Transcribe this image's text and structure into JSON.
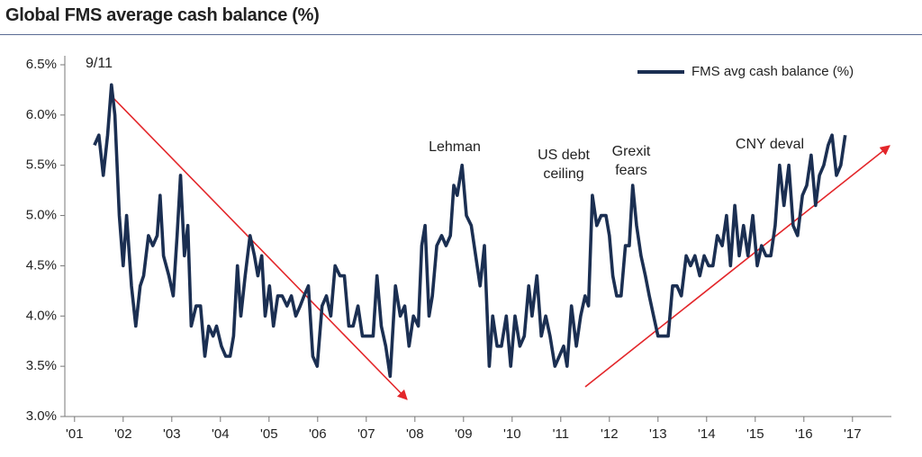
{
  "chart_data": {
    "type": "line",
    "title": "Global FMS average cash balance (%)",
    "annotations": [
      "9/11",
      "Lehman",
      "US debt ceiling",
      "Grexit fears",
      "CNY deval"
    ],
    "legend": "upper right",
    "xlim": [
      2000.8,
      2017.8
    ],
    "xticks": [
      {
        "value": 2001,
        "label": "'01"
      },
      {
        "value": 2002,
        "label": "'02"
      },
      {
        "value": 2003,
        "label": "'03"
      },
      {
        "value": 2004,
        "label": "'04"
      },
      {
        "value": 2005,
        "label": "'05"
      },
      {
        "value": 2006,
        "label": "'06"
      },
      {
        "value": 2007,
        "label": "'07"
      },
      {
        "value": 2008,
        "label": "'08"
      },
      {
        "value": 2009,
        "label": "'09"
      },
      {
        "value": 2010,
        "label": "'10"
      },
      {
        "value": 2011,
        "label": "'11"
      },
      {
        "value": 2012,
        "label": "'12"
      },
      {
        "value": 2013,
        "label": "'13"
      },
      {
        "value": 2014,
        "label": "'14"
      },
      {
        "value": 2015,
        "label": "'15"
      },
      {
        "value": 2016,
        "label": "'16"
      },
      {
        "value": 2017,
        "label": "'17"
      }
    ],
    "ylim": [
      3.0,
      6.5
    ],
    "yticks": [
      {
        "value": 3.0,
        "label": "3.0%"
      },
      {
        "value": 3.5,
        "label": "3.5%"
      },
      {
        "value": 4.0,
        "label": "4.0%"
      },
      {
        "value": 4.5,
        "label": "4.5%"
      },
      {
        "value": 5.0,
        "label": "5.0%"
      },
      {
        "value": 5.5,
        "label": "5.5%"
      },
      {
        "value": 6.0,
        "label": "6.0%"
      },
      {
        "value": 6.5,
        "label": "6.5%"
      }
    ],
    "x": [
      2001.41,
      2001.5,
      2001.59,
      2001.68,
      2001.76,
      2001.83,
      2001.92,
      2002.0,
      2002.07,
      2002.17,
      2002.26,
      2002.35,
      2002.42,
      2002.52,
      2002.61,
      2002.7,
      2002.76,
      2002.83,
      2002.94,
      2003.03,
      2003.11,
      2003.18,
      2003.26,
      2003.33,
      2003.4,
      2003.5,
      2003.59,
      2003.68,
      2003.76,
      2003.85,
      2003.92,
      2004.02,
      2004.11,
      2004.2,
      2004.27,
      2004.35,
      2004.42,
      2004.51,
      2004.61,
      2004.7,
      2004.77,
      2004.85,
      2004.92,
      2005.01,
      2005.09,
      2005.18,
      2005.27,
      2005.37,
      2005.46,
      2005.55,
      2005.64,
      2005.72,
      2005.81,
      2005.9,
      2005.99,
      2006.09,
      2006.18,
      2006.27,
      2006.36,
      2006.46,
      2006.55,
      2006.64,
      2006.73,
      2006.83,
      2006.92,
      2007.05,
      2007.14,
      2007.22,
      2007.31,
      2007.4,
      2007.49,
      2007.6,
      2007.7,
      2007.79,
      2007.88,
      2007.97,
      2008.07,
      2008.14,
      2008.21,
      2008.29,
      2008.36,
      2008.45,
      2008.55,
      2008.64,
      2008.73,
      2008.8,
      2008.87,
      2008.97,
      2009.06,
      2009.16,
      2009.25,
      2009.34,
      2009.43,
      2009.53,
      2009.6,
      2009.69,
      2009.78,
      2009.88,
      2009.97,
      2010.06,
      2010.16,
      2010.25,
      2010.34,
      2010.41,
      2010.51,
      2010.6,
      2010.69,
      2010.78,
      2010.88,
      2010.97,
      2011.06,
      2011.13,
      2011.22,
      2011.32,
      2011.41,
      2011.5,
      2011.57,
      2011.65,
      2011.74,
      2011.83,
      2011.93,
      2012.0,
      2012.07,
      2012.15,
      2012.24,
      2012.33,
      2012.41,
      2012.48,
      2012.56,
      2012.65,
      2012.74,
      2012.82,
      2012.91,
      2013.0,
      2013.11,
      2013.21,
      2013.3,
      2013.39,
      2013.48,
      2013.58,
      2013.67,
      2013.76,
      2013.86,
      2013.95,
      2014.04,
      2014.13,
      2014.22,
      2014.32,
      2014.41,
      2014.49,
      2014.58,
      2014.67,
      2014.76,
      2014.85,
      2014.95,
      2015.04,
      2015.13,
      2015.22,
      2015.32,
      2015.41,
      2015.5,
      2015.59,
      2015.69,
      2015.78,
      2015.87,
      2015.97,
      2016.06,
      2016.15,
      2016.24,
      2016.32,
      2016.41,
      2016.5,
      2016.58,
      2016.67,
      2016.76,
      2016.85
    ],
    "series": [
      {
        "name": "FMS avg cash balance (%)",
        "color": "#1b2f52",
        "values": [
          5.7,
          5.8,
          5.4,
          5.8,
          6.3,
          6.0,
          5.0,
          4.5,
          5.0,
          4.3,
          3.9,
          4.3,
          4.4,
          4.8,
          4.7,
          4.8,
          5.2,
          4.6,
          4.4,
          4.2,
          4.8,
          5.4,
          4.6,
          4.9,
          3.9,
          4.1,
          4.1,
          3.6,
          3.9,
          3.8,
          3.9,
          3.7,
          3.6,
          3.6,
          3.8,
          4.5,
          4.0,
          4.4,
          4.8,
          4.6,
          4.4,
          4.6,
          4.0,
          4.3,
          3.9,
          4.2,
          4.2,
          4.1,
          4.2,
          4.0,
          4.1,
          4.2,
          4.3,
          3.6,
          3.5,
          4.1,
          4.2,
          4.0,
          4.5,
          4.4,
          4.4,
          3.9,
          3.9,
          4.1,
          3.8,
          3.8,
          3.8,
          4.4,
          3.9,
          3.7,
          3.4,
          4.3,
          4.0,
          4.1,
          3.7,
          4.0,
          3.9,
          4.7,
          4.9,
          4.0,
          4.2,
          4.7,
          4.8,
          4.7,
          4.8,
          5.3,
          5.2,
          5.5,
          5.0,
          4.9,
          4.6,
          4.3,
          4.7,
          3.5,
          4.0,
          3.7,
          3.7,
          4.0,
          3.5,
          4.0,
          3.7,
          3.8,
          4.3,
          4.0,
          4.4,
          3.8,
          4.0,
          3.8,
          3.5,
          3.6,
          3.7,
          3.5,
          4.1,
          3.7,
          4.0,
          4.2,
          4.1,
          5.2,
          4.9,
          5.0,
          5.0,
          4.8,
          4.4,
          4.2,
          4.2,
          4.7,
          4.7,
          5.3,
          4.9,
          4.6,
          4.4,
          4.2,
          4.0,
          3.8,
          3.8,
          3.8,
          4.3,
          4.3,
          4.2,
          4.6,
          4.5,
          4.6,
          4.4,
          4.6,
          4.5,
          4.5,
          4.8,
          4.7,
          5.0,
          4.5,
          5.1,
          4.6,
          4.9,
          4.6,
          5.0,
          4.5,
          4.7,
          4.6,
          4.6,
          4.9,
          5.5,
          5.1,
          5.5,
          4.9,
          4.8,
          5.2,
          5.3,
          5.6,
          5.1,
          5.4,
          5.5,
          5.7,
          5.8,
          5.4,
          5.5,
          5.8
        ]
      }
    ]
  }
}
